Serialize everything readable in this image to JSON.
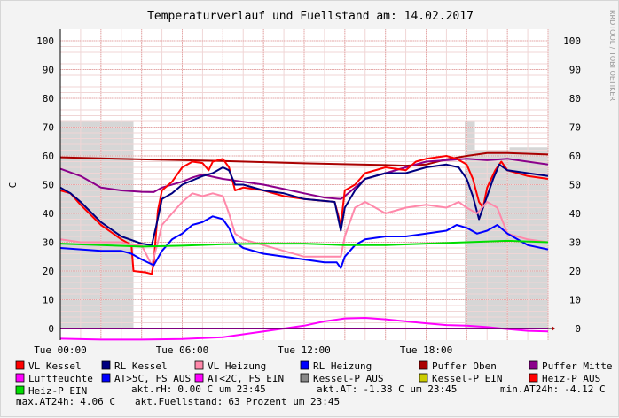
{
  "chart_data": {
    "type": "line",
    "title": "Temperaturverlauf und Fuellstand am: 14.02.2017",
    "watermark": "RRDTOOL / TOBI OETIKER",
    "ylabel": "C",
    "ylim": [
      -4,
      104
    ],
    "xlim": [
      0,
      24
    ],
    "y_ticks": [
      0,
      10,
      20,
      30,
      40,
      50,
      60,
      70,
      80,
      90,
      100
    ],
    "x_ticks": [
      {
        "x": 0,
        "label": "Tue 00:00"
      },
      {
        "x": 6,
        "label": "Tue 06:00"
      },
      {
        "x": 12,
        "label": "Tue 12:00"
      },
      {
        "x": 18,
        "label": "Tue 18:00"
      }
    ],
    "grid": true,
    "legend_placement": "bottom",
    "pump_areas": [
      {
        "name": "Kessel-P AUS",
        "color": "#d6d6d6",
        "segments": [
          {
            "from": 0,
            "to": 3.6,
            "value": 72
          },
          {
            "from": 19.9,
            "to": 20.4,
            "value": 72
          },
          {
            "from": 20.4,
            "to": 22.1,
            "value": 62
          },
          {
            "from": 22.1,
            "to": 24,
            "value": 63
          }
        ]
      }
    ],
    "series": [
      {
        "name": "Puffer Oben",
        "color": "#aa0000",
        "points": [
          [
            0,
            59.5
          ],
          [
            4,
            58.8
          ],
          [
            8,
            58.2
          ],
          [
            12,
            57.4
          ],
          [
            16,
            56.8
          ],
          [
            17,
            56.6
          ],
          [
            18,
            57.0
          ],
          [
            19,
            58.8
          ],
          [
            20,
            60
          ],
          [
            21,
            61
          ],
          [
            22,
            61
          ],
          [
            24,
            60.5
          ]
        ]
      },
      {
        "name": "Puffer Mitte",
        "color": "#8b008b",
        "points": [
          [
            0,
            55.5
          ],
          [
            1,
            53
          ],
          [
            2,
            49
          ],
          [
            3,
            48
          ],
          [
            4,
            47.5
          ],
          [
            4.6,
            47.4
          ],
          [
            5,
            49
          ],
          [
            5.6,
            50.2
          ],
          [
            6,
            51
          ],
          [
            6.5,
            52.5
          ],
          [
            7,
            53.5
          ],
          [
            8,
            52
          ],
          [
            9,
            51
          ],
          [
            10,
            50
          ],
          [
            11,
            48.5
          ],
          [
            12,
            47
          ],
          [
            13,
            45.5
          ],
          [
            13.8,
            45
          ],
          [
            14,
            46
          ],
          [
            14.5,
            49
          ],
          [
            15,
            52
          ],
          [
            16,
            54
          ],
          [
            17,
            56
          ],
          [
            18,
            58
          ],
          [
            19,
            58.5
          ],
          [
            20,
            59
          ],
          [
            21,
            58.5
          ],
          [
            22,
            59
          ],
          [
            23,
            58
          ],
          [
            24,
            57
          ]
        ]
      },
      {
        "name": "VL Kessel",
        "color": "#ff0000",
        "points": [
          [
            0,
            48
          ],
          [
            0.5,
            47
          ],
          [
            1,
            43
          ],
          [
            2,
            36
          ],
          [
            3,
            31
          ],
          [
            3.5,
            29
          ],
          [
            3.6,
            20
          ],
          [
            4.2,
            19.5
          ],
          [
            4.5,
            19
          ],
          [
            4.6,
            23
          ],
          [
            4.8,
            41
          ],
          [
            5,
            48
          ],
          [
            5.5,
            51
          ],
          [
            6,
            56
          ],
          [
            6.5,
            58
          ],
          [
            7,
            57.5
          ],
          [
            7.3,
            55
          ],
          [
            7.5,
            58
          ],
          [
            8,
            59
          ],
          [
            8.3,
            56
          ],
          [
            8.6,
            48
          ],
          [
            9,
            49
          ],
          [
            10,
            48
          ],
          [
            11,
            46
          ],
          [
            12,
            45
          ],
          [
            13.5,
            44
          ],
          [
            13.8,
            36
          ],
          [
            14,
            48
          ],
          [
            14.5,
            50
          ],
          [
            15,
            54
          ],
          [
            16,
            56
          ],
          [
            17,
            55
          ],
          [
            17.5,
            58
          ],
          [
            18,
            59
          ],
          [
            19,
            60
          ],
          [
            19.5,
            59
          ],
          [
            20,
            57
          ],
          [
            20.3,
            52
          ],
          [
            20.6,
            44
          ],
          [
            20.8,
            42
          ],
          [
            21,
            49
          ],
          [
            21.4,
            55
          ],
          [
            21.7,
            58
          ],
          [
            22,
            55
          ],
          [
            22.5,
            54
          ],
          [
            23,
            53
          ],
          [
            24,
            52
          ]
        ]
      },
      {
        "name": "RL Kessel",
        "color": "#000080",
        "points": [
          [
            0,
            49
          ],
          [
            0.5,
            47
          ],
          [
            1,
            44
          ],
          [
            2,
            37
          ],
          [
            3,
            32
          ],
          [
            4,
            29.5
          ],
          [
            4.5,
            29
          ],
          [
            4.7,
            35
          ],
          [
            5,
            45
          ],
          [
            5.5,
            47
          ],
          [
            6,
            50
          ],
          [
            7,
            53
          ],
          [
            7.5,
            54
          ],
          [
            8,
            56
          ],
          [
            8.3,
            55
          ],
          [
            8.6,
            50
          ],
          [
            9,
            50
          ],
          [
            10,
            48
          ],
          [
            11,
            47
          ],
          [
            12,
            45
          ],
          [
            13.5,
            44
          ],
          [
            13.8,
            34
          ],
          [
            14,
            42
          ],
          [
            14.5,
            48
          ],
          [
            15,
            52
          ],
          [
            16,
            54
          ],
          [
            17,
            54
          ],
          [
            18,
            56
          ],
          [
            19,
            57
          ],
          [
            19.6,
            56
          ],
          [
            20,
            52
          ],
          [
            20.3,
            46
          ],
          [
            20.6,
            38
          ],
          [
            21,
            46
          ],
          [
            21.3,
            52
          ],
          [
            21.6,
            57
          ],
          [
            22,
            55
          ],
          [
            23,
            54
          ],
          [
            24,
            53
          ]
        ]
      },
      {
        "name": "VL Heizung",
        "color": "#ff88aa",
        "points": [
          [
            0,
            31
          ],
          [
            1,
            30
          ],
          [
            2,
            30
          ],
          [
            3,
            30
          ],
          [
            3.5,
            29
          ],
          [
            4,
            29
          ],
          [
            4.5,
            22
          ],
          [
            4.8,
            30
          ],
          [
            5,
            36
          ],
          [
            5.5,
            40
          ],
          [
            6,
            44
          ],
          [
            6.5,
            47
          ],
          [
            7,
            46
          ],
          [
            7.5,
            47
          ],
          [
            8,
            46
          ],
          [
            8.3,
            40
          ],
          [
            8.6,
            33
          ],
          [
            9,
            31
          ],
          [
            10,
            29
          ],
          [
            11,
            27
          ],
          [
            12,
            25
          ],
          [
            13,
            25
          ],
          [
            13.8,
            25
          ],
          [
            14,
            32
          ],
          [
            14.5,
            42
          ],
          [
            15,
            44
          ],
          [
            16,
            40
          ],
          [
            17,
            42
          ],
          [
            18,
            43
          ],
          [
            19,
            42
          ],
          [
            19.6,
            44
          ],
          [
            20,
            42
          ],
          [
            20.5,
            40
          ],
          [
            21,
            44
          ],
          [
            21.5,
            42
          ],
          [
            22,
            33
          ],
          [
            23,
            31
          ],
          [
            24,
            30
          ]
        ]
      },
      {
        "name": "RL Heizung",
        "color": "#0000ff",
        "points": [
          [
            0,
            28
          ],
          [
            1,
            27.5
          ],
          [
            2,
            27
          ],
          [
            3,
            27
          ],
          [
            3.5,
            26
          ],
          [
            4,
            24
          ],
          [
            4.6,
            22
          ],
          [
            5,
            27
          ],
          [
            5.5,
            31
          ],
          [
            6,
            33
          ],
          [
            6.5,
            36
          ],
          [
            7,
            37
          ],
          [
            7.5,
            39
          ],
          [
            8,
            38
          ],
          [
            8.3,
            35
          ],
          [
            8.6,
            30
          ],
          [
            9,
            28
          ],
          [
            10,
            26
          ],
          [
            11,
            25
          ],
          [
            12,
            24
          ],
          [
            13,
            23
          ],
          [
            13.6,
            23
          ],
          [
            13.8,
            21
          ],
          [
            14,
            25
          ],
          [
            14.5,
            29
          ],
          [
            15,
            31
          ],
          [
            16,
            32
          ],
          [
            17,
            32
          ],
          [
            18,
            33
          ],
          [
            19,
            34
          ],
          [
            19.5,
            36
          ],
          [
            20,
            35
          ],
          [
            20.5,
            33
          ],
          [
            21,
            34
          ],
          [
            21.5,
            36
          ],
          [
            22,
            33
          ],
          [
            23,
            29
          ],
          [
            24,
            27.5
          ]
        ]
      },
      {
        "name": "Heiz-P EIN",
        "color": "#00dd00",
        "points": [
          [
            0,
            29.5
          ],
          [
            2,
            29
          ],
          [
            4,
            28.5
          ],
          [
            6,
            28.8
          ],
          [
            8,
            29.3
          ],
          [
            10,
            29.5
          ],
          [
            12,
            29.5
          ],
          [
            14,
            29
          ],
          [
            16,
            29
          ],
          [
            18,
            29.5
          ],
          [
            20,
            30
          ],
          [
            22,
            30.5
          ],
          [
            24,
            30
          ]
        ]
      },
      {
        "name": "Luftfeuchte",
        "color": "#ff00ff",
        "points": [
          [
            0,
            -3.5
          ],
          [
            2,
            -3.8
          ],
          [
            4,
            -3.8
          ],
          [
            6,
            -3.6
          ],
          [
            8,
            -3
          ],
          [
            9,
            -2
          ],
          [
            10,
            -1
          ],
          [
            11,
            0
          ],
          [
            12,
            1
          ],
          [
            13,
            2.5
          ],
          [
            14,
            3.5
          ],
          [
            15,
            3.7
          ],
          [
            16,
            3.2
          ],
          [
            17,
            2.5
          ],
          [
            18,
            1.8
          ],
          [
            19,
            1.2
          ],
          [
            20,
            1
          ],
          [
            21,
            0.5
          ],
          [
            22,
            -0.2
          ],
          [
            23,
            -0.8
          ],
          [
            24,
            -1
          ]
        ]
      },
      {
        "name": "AT<2C, FS EIN",
        "color": "#ff00ff",
        "points": [
          [
            0,
            0
          ],
          [
            24,
            0
          ]
        ]
      }
    ],
    "legend": [
      {
        "name": "VL Kessel",
        "color": "#ff0000"
      },
      {
        "name": "RL Kessel",
        "color": "#000080"
      },
      {
        "name": "VL Heizung",
        "color": "#ff88aa"
      },
      {
        "name": "RL Heizung",
        "color": "#0000ff"
      },
      {
        "name": "Puffer Oben",
        "color": "#aa0000"
      },
      {
        "name": "Puffer Mitte",
        "color": "#8b008b"
      },
      {
        "name": "Luftfeuchte",
        "color": "#ff00ff"
      },
      {
        "name": "AT>5C, FS AUS",
        "color": "#0000ff"
      },
      {
        "name": "AT<2C, FS EIN",
        "color": "#ff00ff"
      },
      {
        "name": "Kessel-P AUS",
        "color": "#888888"
      },
      {
        "name": "Kessel-P EIN",
        "color": "#cccc00"
      },
      {
        "name": "Heiz-P AUS",
        "color": "#ff0000"
      },
      {
        "name": "Heiz-P EIN",
        "color": "#00dd00"
      }
    ],
    "status_lines": [
      {
        "label": "akt.rH:",
        "value": "0.00 C um 23:45"
      },
      {
        "label": "akt.AT:",
        "value": "-1.38 C um 23:45"
      },
      {
        "label": "min.AT24h:",
        "value": "-4.12 C"
      },
      {
        "label": "max.AT24h:",
        "value": "4.06 C"
      },
      {
        "label": "akt.Fuellstand:",
        "value": "63 Prozent um 23:45"
      }
    ]
  }
}
